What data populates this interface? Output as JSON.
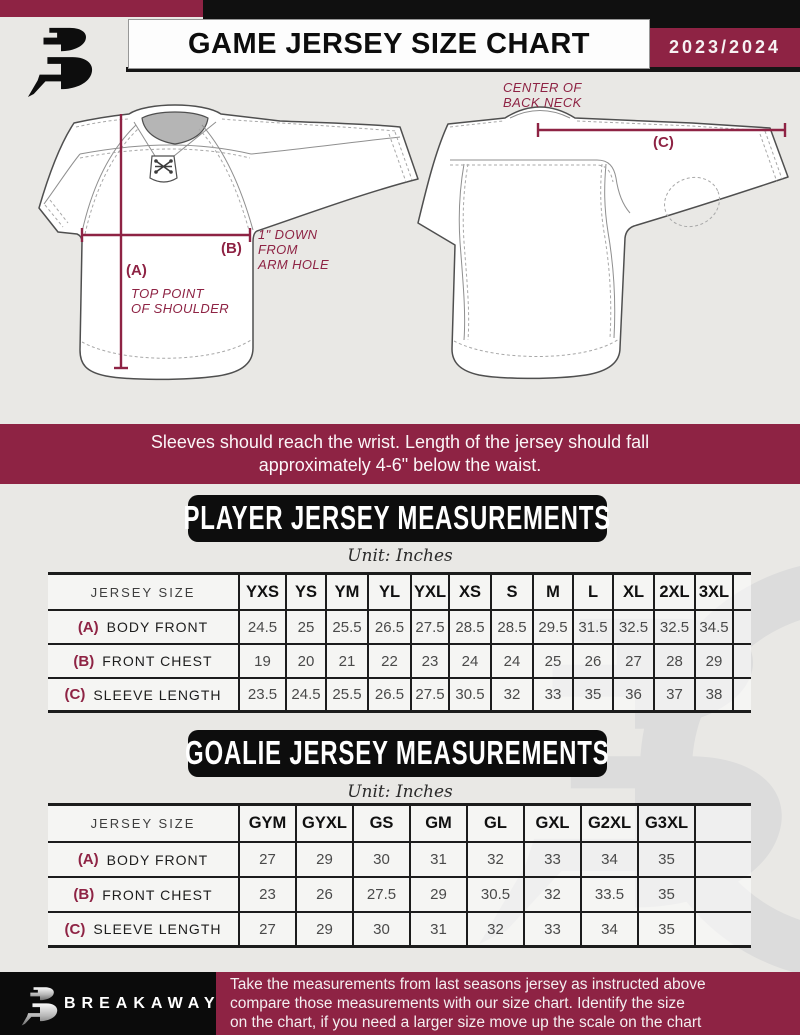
{
  "page": {
    "title": "GAME JERSEY SIZE CHART",
    "season": "2023/2024"
  },
  "banner": {
    "text": "Sleeves should reach the wrist. Length of the jersey should fall\napproximately 4-6\" below the waist."
  },
  "diagram": {
    "front_label_a": "(A)",
    "front_note_a": "TOP POINT\nOF SHOULDER",
    "front_label_b": "(B)",
    "front_note_b": "1\" DOWN\nFROM\nARM HOLE",
    "back_label_c": "(C)",
    "back_note_c": "CENTER OF\nBACK NECK"
  },
  "player": {
    "title": "PLAYER JERSEY MEASUREMENTS",
    "unit": "Unit: Inches",
    "corner_label": "JERSEY SIZE",
    "sizes": [
      "YXS",
      "YS",
      "YM",
      "YL",
      "YXL",
      "XS",
      "S",
      "M",
      "L",
      "XL",
      "2XL",
      "3XL"
    ],
    "rows": [
      {
        "key": "(A)",
        "label": "BODY FRONT",
        "values": [
          "24.5",
          "25",
          "25.5",
          "26.5",
          "27.5",
          "28.5",
          "28.5",
          "29.5",
          "31.5",
          "32.5",
          "32.5",
          "34.5"
        ]
      },
      {
        "key": "(B)",
        "label": "FRONT CHEST",
        "values": [
          "19",
          "20",
          "21",
          "22",
          "23",
          "24",
          "24",
          "25",
          "26",
          "27",
          "28",
          "29"
        ]
      },
      {
        "key": "(C)",
        "label": "SLEEVE LENGTH",
        "values": [
          "23.5",
          "24.5",
          "25.5",
          "26.5",
          "27.5",
          "30.5",
          "32",
          "33",
          "35",
          "36",
          "37",
          "38"
        ]
      }
    ]
  },
  "goalie": {
    "title": "GOALIE JERSEY MEASUREMENTS",
    "unit": "Unit: Inches",
    "corner_label": "JERSEY SIZE",
    "sizes": [
      "GYM",
      "GYXL",
      "GS",
      "GM",
      "GL",
      "GXL",
      "G2XL",
      "G3XL"
    ],
    "rows": [
      {
        "key": "(A)",
        "label": "BODY FRONT",
        "values": [
          "27",
          "29",
          "30",
          "31",
          "32",
          "33",
          "34",
          "35"
        ]
      },
      {
        "key": "(B)",
        "label": "FRONT CHEST",
        "values": [
          "23",
          "26",
          "27.5",
          "29",
          "30.5",
          "32",
          "33.5",
          "35"
        ]
      },
      {
        "key": "(C)",
        "label": "SLEEVE LENGTH",
        "values": [
          "27",
          "29",
          "30",
          "31",
          "32",
          "33",
          "34",
          "35"
        ]
      }
    ]
  },
  "footer": {
    "brand": "BREAKAWAY",
    "note": "Take the measurements from last seasons jersey as instructed above\ncompare those measurements with our size chart. Identify the size\non the chart, if you need a larger size move up the scale on the chart"
  },
  "colors": {
    "maroon": "#8e2344",
    "ink": "#101010",
    "page_bg": "#e9e8e5",
    "table_line": "#1c1c1c",
    "watermark": "#dcdcdc"
  }
}
